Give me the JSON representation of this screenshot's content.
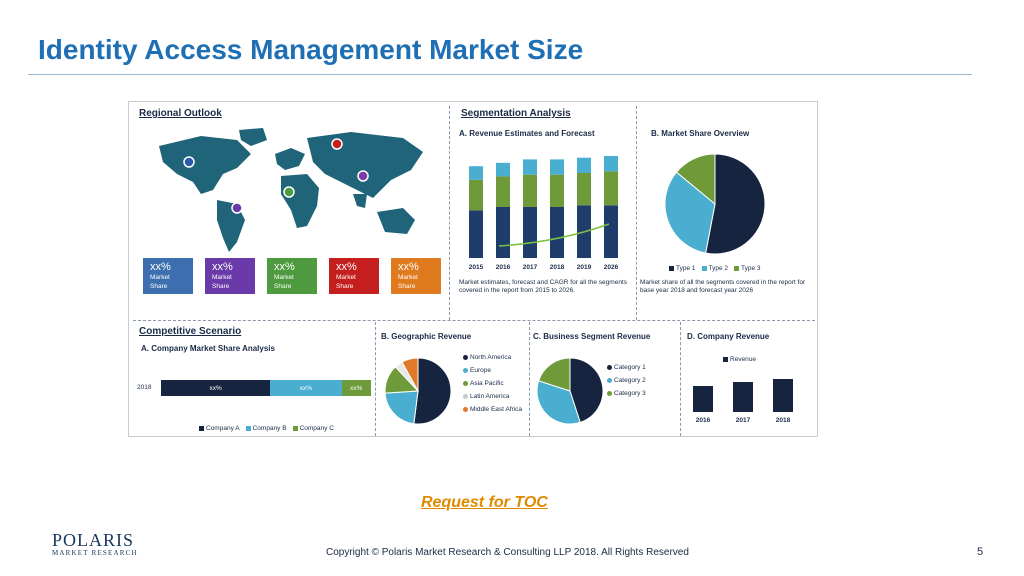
{
  "title": "Identity Access Management Market Size",
  "regional": {
    "title": "Regional Outlook",
    "boxes": [
      {
        "pct": "xx%",
        "line1": "Market",
        "line2": "Share",
        "color": "#3d6fb0"
      },
      {
        "pct": "xx%",
        "line1": "Market",
        "line2": "Share",
        "color": "#6a3aa8"
      },
      {
        "pct": "xx%",
        "line1": "Market",
        "line2": "Share",
        "color": "#4e9a3e"
      },
      {
        "pct": "xx%",
        "line1": "Market",
        "line2": "Share",
        "color": "#c41e1e"
      },
      {
        "pct": "xx%",
        "line1": "Market",
        "line2": "Share",
        "color": "#e07a1f"
      }
    ]
  },
  "segmentation": {
    "title": "Segmentation Analysis",
    "revenue_title": "A. Revenue Estimates and Forecast",
    "revenue_note": "Market estimates, forecast and CAGR for all the segments covered in the report from 2015 to 2026.",
    "share_title": "B. Market Share Overview",
    "share_note": "Market share of all the segments covered in the report for base year 2018 and forecast year 2026",
    "legend": [
      "Type 1",
      "Type 2",
      "Type 3"
    ]
  },
  "competitive": {
    "title": "Competitive Scenario",
    "subtitle": "A. Company Market Share Analysis",
    "year": "2018",
    "bar_labels": [
      "xx%",
      "xx%",
      "xx%"
    ],
    "legend": [
      "Company A",
      "Company B",
      "Company C"
    ]
  },
  "geographic": {
    "title": "B. Geographic Revenue",
    "legend": [
      "North America",
      "Europe",
      "Asia Pacific",
      "Latin America",
      "Middle East Africa"
    ]
  },
  "business": {
    "title": "C. Business Segment Revenue",
    "legend": [
      "Category 1",
      "Category 2",
      "Category 3"
    ]
  },
  "company_rev": {
    "title": "D. Company Revenue",
    "legend": "Revenue"
  },
  "chart_data": [
    {
      "type": "bar",
      "title": "A. Revenue Estimates and Forecast",
      "categories": [
        "2015",
        "2016",
        "2017",
        "2018",
        "2019",
        "2026"
      ],
      "series": [
        {
          "values": [
            0.28,
            0.3,
            0.3,
            0.3,
            0.31,
            0.31
          ]
        },
        {
          "values": [
            0.18,
            0.18,
            0.19,
            0.19,
            0.19,
            0.2
          ]
        },
        {
          "values": [
            0.08,
            0.08,
            0.09,
            0.09,
            0.09,
            0.09
          ]
        }
      ],
      "colors": [
        "#1f3d6b",
        "#6e9a3a",
        "#4aaed0"
      ]
    },
    {
      "type": "pie",
      "title": "B. Market Share Overview",
      "labels": [
        "Type 1",
        "Type 2",
        "Type 3"
      ],
      "values": [
        53,
        33,
        14
      ],
      "colors": [
        "#16243f",
        "#4aaed0",
        "#6e9a3a"
      ]
    },
    {
      "type": "bar",
      "title": "A. Company Market Share Analysis",
      "categories": [
        "2018"
      ],
      "series": [
        {
          "name": "Company A",
          "values": [
            52
          ]
        },
        {
          "name": "Company B",
          "values": [
            34
          ]
        },
        {
          "name": "Company C",
          "values": [
            14
          ]
        }
      ],
      "colors": [
        "#16243f",
        "#4aaed0",
        "#6e9a3a"
      ]
    },
    {
      "type": "pie",
      "title": "B. Geographic Revenue",
      "labels": [
        "North America",
        "Europe",
        "Asia Pacific",
        "Latin America",
        "Middle East Africa"
      ],
      "values": [
        52,
        22,
        14,
        4,
        8
      ],
      "colors": [
        "#16243f",
        "#4aaed0",
        "#6e9a3a",
        "#e8e8e8",
        "#e07a2a"
      ]
    },
    {
      "type": "pie",
      "title": "C. Business Segment Revenue",
      "labels": [
        "Category 1",
        "Category 2",
        "Category 3"
      ],
      "values": [
        45,
        35,
        20
      ],
      "colors": [
        "#16243f",
        "#4aaed0",
        "#6e9a3a"
      ]
    },
    {
      "type": "bar",
      "title": "D. Company Revenue",
      "categories": [
        "2016",
        "2017",
        "2018"
      ],
      "series": [
        {
          "name": "Revenue",
          "values": [
            26,
            30,
            33
          ]
        }
      ],
      "colors": [
        "#16243f"
      ]
    }
  ],
  "cta": {
    "label": "Request for TOC"
  },
  "footer": {
    "logo_main": "POLARIS",
    "logo_sub": "MARKET RESEARCH",
    "copyright": "Copyright © Polaris Market Research & Consulting LLP 2018. All Rights Reserved",
    "page_number": "5"
  }
}
